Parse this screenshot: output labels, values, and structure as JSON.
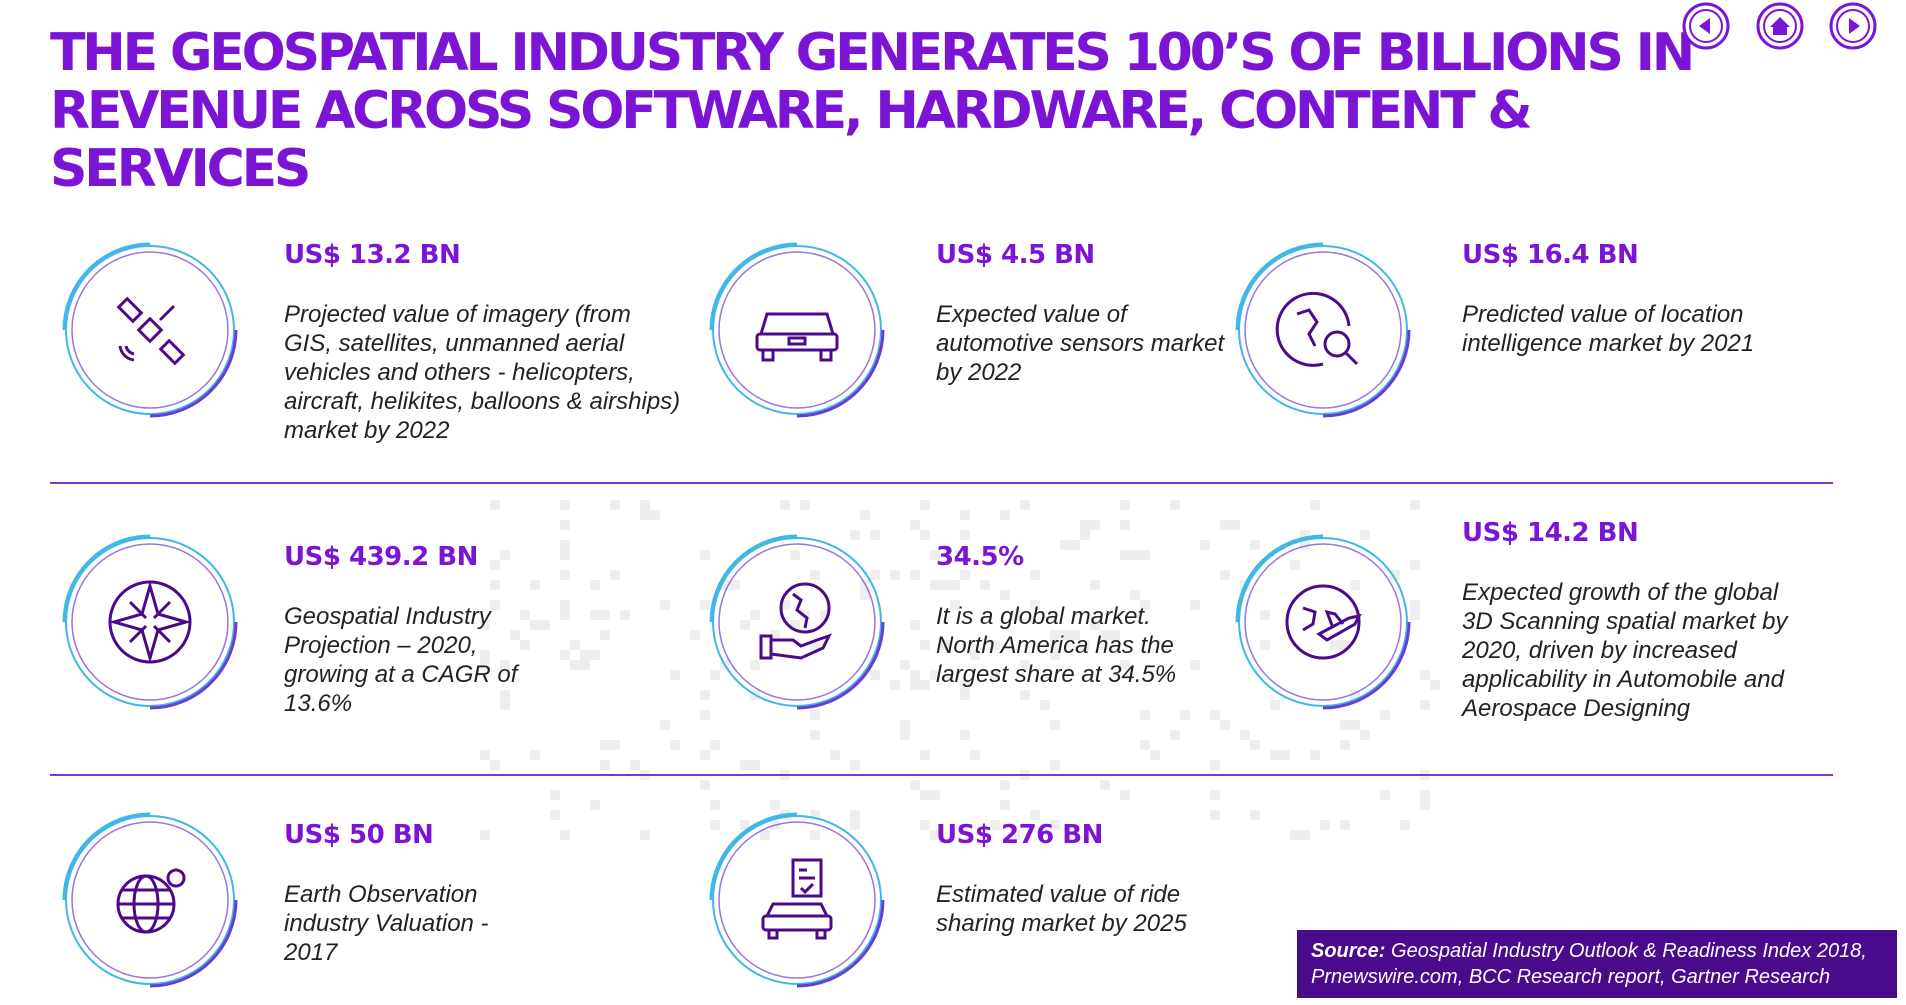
{
  "title": "THE GEOSPATIAL INDUSTRY GENERATES 100’S OF BILLIONS IN REVENUE ACROSS SOFTWARE, HARDWARE, CONTENT & SERVICES",
  "nav": {
    "prev_icon": "prev-arrow-icon",
    "home_icon": "home-icon",
    "next_icon": "next-arrow-icon"
  },
  "colors": {
    "accent": "#7c14d6",
    "ring": "#3fb8e8",
    "dark_purple": "#4a0a8c",
    "divider": "#7a3cc8"
  },
  "items": [
    {
      "stat": "US$ 13.2 BN",
      "desc": "Projected value of imagery (from GIS, satellites, unmanned aerial vehicles and others - helicopters, aircraft, helikites, balloons & airships) market by 2022",
      "icon": "satellite-icon"
    },
    {
      "stat": "US$ 4.5 BN",
      "desc": "Expected value of automotive sensors market by 2022",
      "icon": "car-icon"
    },
    {
      "stat": "US$ 16.4 BN",
      "desc": "Predicted value of location intelligence market by 2021",
      "icon": "globe-search-icon"
    },
    {
      "stat": "US$ 439.2 BN",
      "desc": "Geospatial Industry Projection – 2020, growing at a CAGR of 13.6%",
      "icon": "compass-rose-icon"
    },
    {
      "stat": "34.5%",
      "desc": "It is a global market. North America has the largest share at 34.5%",
      "icon": "globe-in-hand-icon"
    },
    {
      "stat": "US$ 14.2 BN",
      "desc": "Expected growth of the global 3D Scanning spatial market by 2020, driven by increased applicability in Automobile and Aerospace Designing",
      "icon": "globe-airplane-icon"
    },
    {
      "stat": "US$ 50 BN",
      "desc": "Earth Observation industry Valuation - 2017",
      "icon": "globe-network-icon"
    },
    {
      "stat": "US$ 276 BN",
      "desc": "Estimated value of ride sharing market by 2025",
      "icon": "ride-share-car-icon"
    }
  ],
  "source": {
    "label": "Source:",
    "text": " Geospatial Industry Outlook & Readiness Index 2018, Prnewswire.com, BCC Research report, Gartner Research"
  }
}
